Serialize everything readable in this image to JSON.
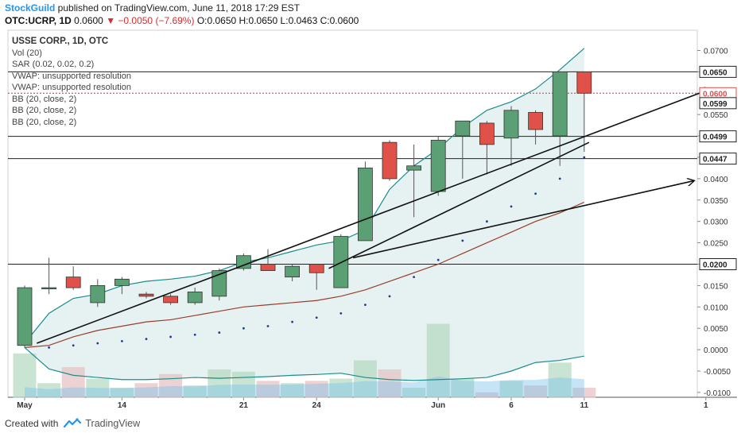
{
  "header": {
    "brand": "StockGuild",
    "published": " published on TradingView.com, June 11, 2018 17:29 EST",
    "symbol": "OTC:UCRP, 1D",
    "last": "0.0600",
    "change": "▼ −0.0050 (−7.69%)",
    "ohlc": "O:0.0650 H:0.0650 L:0.0463 C:0.0600"
  },
  "legend": {
    "title": "USSE CORP., 1D, OTC",
    "items": [
      "Vol (20)",
      "SAR (0.02, 0.02, 0.2)",
      "VWAP: unsupported resolution",
      "VWAP: unsupported resolution",
      "BB (20, close, 2)",
      "BB (20, close, 2)",
      "BB (20, close, 2)"
    ]
  },
  "footer": {
    "created": "Created with",
    "tv": "TradingView"
  },
  "colors": {
    "up": "#5b9f74",
    "down": "#e0514a",
    "band": "#1a8c8c",
    "basis": "#9a3c2c",
    "fill": "#e3f1f0",
    "accent": "#2196f3"
  },
  "chart_data": {
    "type": "candlestick",
    "ylim": [
      -0.0115,
      0.0725
    ],
    "y_ticks": [
      "0.0700",
      "0.0650",
      "0.0600",
      "0.0550",
      "0.0500",
      "0.0450",
      "0.0400",
      "0.0350",
      "0.0300",
      "0.0250",
      "0.0200",
      "0.0150",
      "0.0100",
      "0.0050",
      "0.0000",
      "-0.0050",
      "-0.0100"
    ],
    "x_labels": [
      {
        "label": "May",
        "i": 0
      },
      {
        "label": "14",
        "i": 4
      },
      {
        "label": "21",
        "i": 9
      },
      {
        "label": "24",
        "i": 12
      },
      {
        "label": "Jun",
        "i": 17
      },
      {
        "label": "6",
        "i": 20
      },
      {
        "label": "11",
        "i": 23
      },
      {
        "label": "1",
        "i": 28
      }
    ],
    "candles": [
      {
        "o": 0.001,
        "h": 0.015,
        "l": 0.0005,
        "c": 0.0145
      },
      {
        "o": 0.0145,
        "h": 0.0215,
        "l": 0.013,
        "c": 0.0145
      },
      {
        "o": 0.017,
        "h": 0.0195,
        "l": 0.014,
        "c": 0.0145
      },
      {
        "o": 0.011,
        "h": 0.0165,
        "l": 0.01,
        "c": 0.015
      },
      {
        "o": 0.015,
        "h": 0.017,
        "l": 0.013,
        "c": 0.0165
      },
      {
        "o": 0.013,
        "h": 0.0135,
        "l": 0.012,
        "c": 0.0125
      },
      {
        "o": 0.0125,
        "h": 0.013,
        "l": 0.0105,
        "c": 0.011
      },
      {
        "o": 0.011,
        "h": 0.0145,
        "l": 0.0105,
        "c": 0.0135
      },
      {
        "o": 0.0125,
        "h": 0.019,
        "l": 0.0115,
        "c": 0.0185
      },
      {
        "o": 0.019,
        "h": 0.0225,
        "l": 0.0185,
        "c": 0.022
      },
      {
        "o": 0.02,
        "h": 0.0235,
        "l": 0.0185,
        "c": 0.0185
      },
      {
        "o": 0.017,
        "h": 0.02,
        "l": 0.016,
        "c": 0.0195
      },
      {
        "o": 0.02,
        "h": 0.02,
        "l": 0.014,
        "c": 0.018
      },
      {
        "o": 0.0145,
        "h": 0.027,
        "l": 0.0145,
        "c": 0.0265
      },
      {
        "o": 0.0255,
        "h": 0.044,
        "l": 0.0255,
        "c": 0.0425
      },
      {
        "o": 0.0485,
        "h": 0.049,
        "l": 0.0395,
        "c": 0.04
      },
      {
        "o": 0.042,
        "h": 0.048,
        "l": 0.031,
        "c": 0.043
      },
      {
        "o": 0.037,
        "h": 0.05,
        "l": 0.036,
        "c": 0.049
      },
      {
        "o": 0.05,
        "h": 0.0535,
        "l": 0.04,
        "c": 0.0535
      },
      {
        "o": 0.053,
        "h": 0.0535,
        "l": 0.041,
        "c": 0.048
      },
      {
        "o": 0.0495,
        "h": 0.057,
        "l": 0.043,
        "c": 0.056
      },
      {
        "o": 0.0555,
        "h": 0.056,
        "l": 0.048,
        "c": 0.0515
      },
      {
        "o": 0.05,
        "h": 0.065,
        "l": 0.043,
        "c": 0.065
      },
      {
        "o": 0.065,
        "h": 0.065,
        "l": 0.0463,
        "c": 0.06
      }
    ],
    "bb_upper": [
      0.0015,
      0.0085,
      0.012,
      0.013,
      0.015,
      0.016,
      0.0165,
      0.0172,
      0.0185,
      0.0205,
      0.0215,
      0.023,
      0.0245,
      0.0255,
      0.028,
      0.0375,
      0.043,
      0.047,
      0.052,
      0.056,
      0.058,
      0.061,
      0.0655,
      0.0705
    ],
    "bb_basis": [
      0.0005,
      0.001,
      0.003,
      0.0045,
      0.0055,
      0.0065,
      0.007,
      0.008,
      0.009,
      0.01,
      0.0105,
      0.011,
      0.0115,
      0.0125,
      0.014,
      0.016,
      0.018,
      0.02,
      0.0225,
      0.025,
      0.0275,
      0.03,
      0.032,
      0.0345
    ],
    "bb_lower": [
      0.0005,
      -0.0045,
      -0.006,
      -0.0065,
      -0.007,
      -0.007,
      -0.0068,
      -0.0065,
      -0.0067,
      -0.0065,
      -0.0063,
      -0.006,
      -0.0058,
      -0.0055,
      -0.0065,
      -0.007,
      -0.0072,
      -0.007,
      -0.0068,
      -0.0065,
      -0.005,
      -0.003,
      -0.0025,
      -0.0015
    ],
    "sar": [
      null,
      0.0005,
      0.001,
      0.0015,
      0.002,
      0.0025,
      0.003,
      0.0035,
      0.004,
      0.005,
      0.0055,
      0.0065,
      0.0075,
      0.0085,
      0.0105,
      0.0125,
      0.017,
      0.021,
      0.0255,
      0.03,
      0.0335,
      0.0365,
      0.04,
      0.045
    ],
    "volume": [
      0.0095,
      0.003,
      0.0065,
      0.004,
      0.002,
      0.003,
      0.005,
      0.0025,
      0.006,
      0.0055,
      0.0035,
      0.003,
      0.0035,
      0.004,
      0.008,
      0.006,
      0.002,
      0.016,
      0.004,
      0.001,
      0.0035,
      0.0025,
      0.0075,
      0.002
    ],
    "hlines": [
      0.065,
      0.0499,
      0.0447,
      0.02
    ],
    "dashed_line": 0.06,
    "price_labels": [
      {
        "label": "0.0650",
        "v": 0.065
      },
      {
        "label": "0.0600",
        "v": 0.06,
        "color": "#e0514a"
      },
      {
        "label": "0.0599",
        "v": 0.0599
      },
      {
        "label": "0.0499",
        "v": 0.0499
      },
      {
        "label": "0.0447",
        "v": 0.0447
      },
      {
        "label": "0.0200",
        "v": 0.02
      }
    ],
    "trendlines": [
      {
        "from": [
          0.5,
          0.0015
        ],
        "to": [
          28.2,
          0.061
        ],
        "arrow": true
      },
      {
        "from": [
          12.5,
          0.019
        ],
        "to": [
          23.2,
          0.0485
        ],
        "arrow": false
      },
      {
        "from": [
          13.5,
          0.0215
        ],
        "to": [
          27.5,
          0.0395
        ],
        "arrow": true
      }
    ]
  }
}
